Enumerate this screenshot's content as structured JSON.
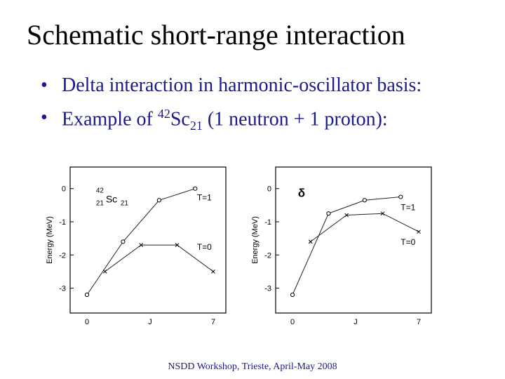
{
  "slide": {
    "title": "Schematic short-range interaction",
    "bullets": [
      {
        "text": "Delta interaction in harmonic-oscillator basis:"
      },
      {
        "prefix": "Example of ",
        "sup": "42",
        "base": "Sc",
        "sub": "21",
        "suffix": " (1 neutron + 1 proton):"
      }
    ],
    "footer": "NSDD Workshop, Trieste, April-May 2008"
  },
  "chart_data": [
    {
      "type": "line",
      "title": "",
      "xlabel": "J",
      "ylabel": "Energy (MeV)",
      "xlim": [
        0,
        7
      ],
      "ylim": [
        -3.2,
        0.1
      ],
      "xticks": [
        {
          "v": 0,
          "label": "0"
        },
        {
          "v": 3.5,
          "label": "J"
        },
        {
          "v": 7,
          "label": "7"
        }
      ],
      "yticks": [
        {
          "v": 0,
          "label": "0"
        },
        {
          "v": -1,
          "label": "-1"
        },
        {
          "v": -2,
          "label": "-2"
        },
        {
          "v": -3,
          "label": "-3"
        }
      ],
      "annotation": {
        "sup": "42",
        "sub": "21",
        "base": "Sc",
        "post_sub": "21",
        "x": 0.5,
        "y": -0.25
      },
      "series": [
        {
          "name": "T=1",
          "marker": "circle",
          "x": [
            0,
            2,
            4,
            6
          ],
          "y": [
            -3.2,
            -1.6,
            -0.35,
            0.0
          ],
          "label_x": 6.1,
          "label_y": -0.35
        },
        {
          "name": "T=0",
          "marker": "cross",
          "x": [
            1,
            3,
            5,
            7
          ],
          "y": [
            -2.5,
            -1.7,
            -1.7,
            -2.5
          ],
          "label_x": 6.1,
          "label_y": -1.85
        }
      ]
    },
    {
      "type": "line",
      "title": "",
      "xlabel": "J",
      "ylabel": "Energy (MeV)",
      "xlim": [
        0,
        7
      ],
      "ylim": [
        -3.2,
        0.1
      ],
      "xticks": [
        {
          "v": 0,
          "label": "0"
        },
        {
          "v": 3.5,
          "label": "J"
        },
        {
          "v": 7,
          "label": "7"
        }
      ],
      "yticks": [
        {
          "v": 0,
          "label": "0"
        },
        {
          "v": -1,
          "label": "-1"
        },
        {
          "v": -2,
          "label": "-2"
        },
        {
          "v": -3,
          "label": "-3"
        }
      ],
      "annotation": {
        "text": "δ",
        "x": 0.3,
        "y": -0.25
      },
      "series": [
        {
          "name": "T=1",
          "marker": "circle",
          "x": [
            0,
            2,
            4,
            6
          ],
          "y": [
            -3.2,
            -0.75,
            -0.35,
            -0.25
          ],
          "label_x": 6.0,
          "label_y": -0.65
        },
        {
          "name": "T=0",
          "marker": "cross",
          "x": [
            1,
            3,
            5,
            7
          ],
          "y": [
            -1.6,
            -0.8,
            -0.75,
            -1.3
          ],
          "label_x": 6.0,
          "label_y": -1.7
        }
      ]
    }
  ]
}
